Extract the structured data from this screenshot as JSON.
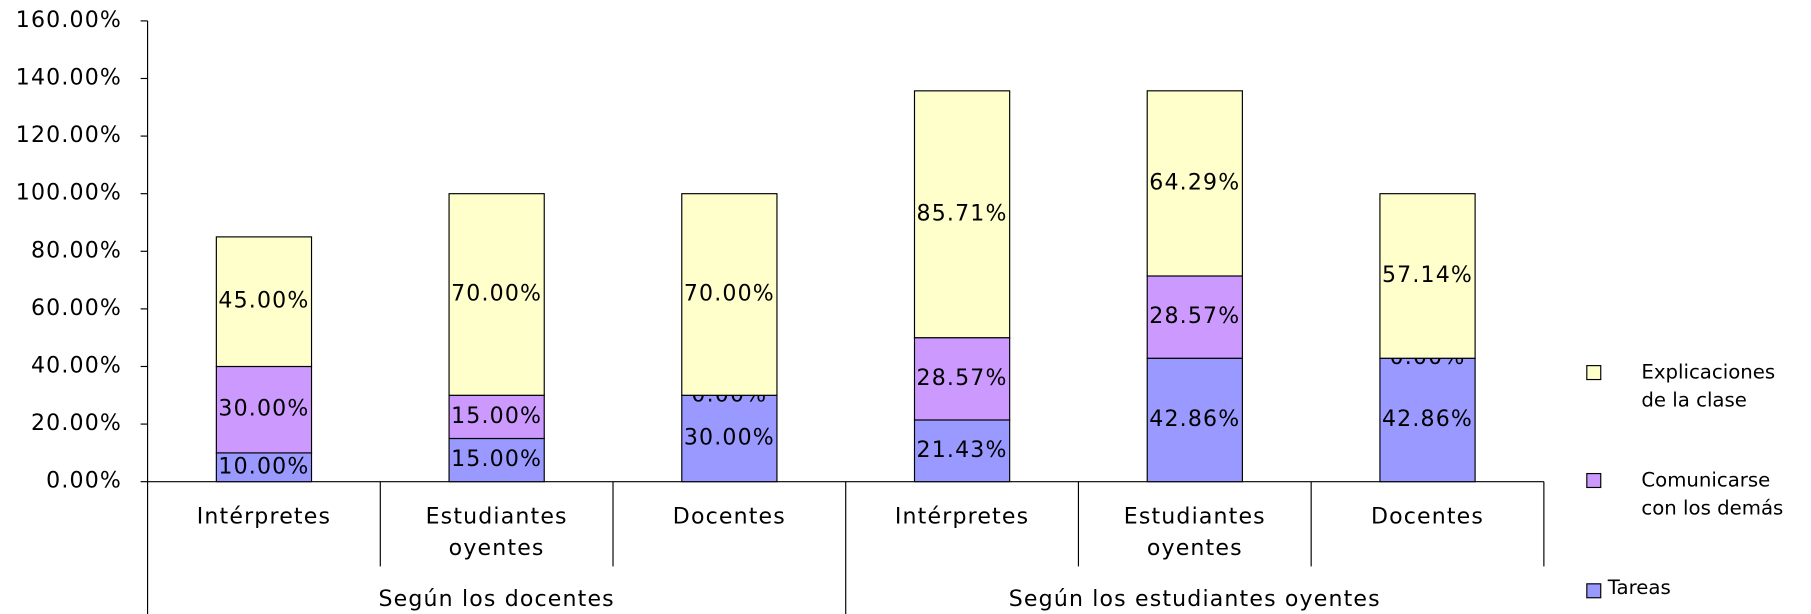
{
  "chart_data": {
    "type": "stacked_bar",
    "categories": [
      "Intérpretes",
      "Estudiantes oyentes",
      "Docentes",
      "Intérpretes",
      "Estudiantes oyentes",
      "Docentes"
    ],
    "groups": [
      "Según los docentes",
      "Según los estudiantes oyentes"
    ],
    "series": [
      {
        "name": "Tareas",
        "color": "#9999ff",
        "values": [
          10,
          15,
          30,
          21.43,
          42.86,
          42.86
        ],
        "value_labels": [
          "10.00%",
          "15.00%",
          "30.00%",
          "21.43%",
          "42.86%",
          "42.86%"
        ]
      },
      {
        "name": "Comunicarse con los demás",
        "color": "#cc99ff",
        "values": [
          30,
          15,
          0,
          28.57,
          28.57,
          0
        ],
        "value_labels": [
          "30.00%",
          "15.00%",
          "0.00%",
          "28.57%",
          "28.57%",
          "0.00%"
        ]
      },
      {
        "name": "Explicaciones de la clase",
        "color": "#ffffcc",
        "values": [
          45,
          70,
          70,
          85.71,
          64.29,
          57.14
        ],
        "value_labels": [
          "45.00%",
          "70.00%",
          "70.00%",
          "85.71%",
          "64.29%",
          "57.14%"
        ]
      }
    ],
    "ylim": [
      0,
      160
    ],
    "yticks": [
      {
        "value": 0,
        "label": "0.00%"
      },
      {
        "value": 20,
        "label": "20.00%"
      },
      {
        "value": 40,
        "label": "40.00%"
      },
      {
        "value": 60,
        "label": "60.00%"
      },
      {
        "value": 80,
        "label": "80.00%"
      },
      {
        "value": 100,
        "label": "100.00%"
      },
      {
        "value": 120,
        "label": "120.00%"
      },
      {
        "value": 140,
        "label": "140.00%"
      },
      {
        "value": 160,
        "label": "160.00%"
      }
    ],
    "legend": "right"
  }
}
